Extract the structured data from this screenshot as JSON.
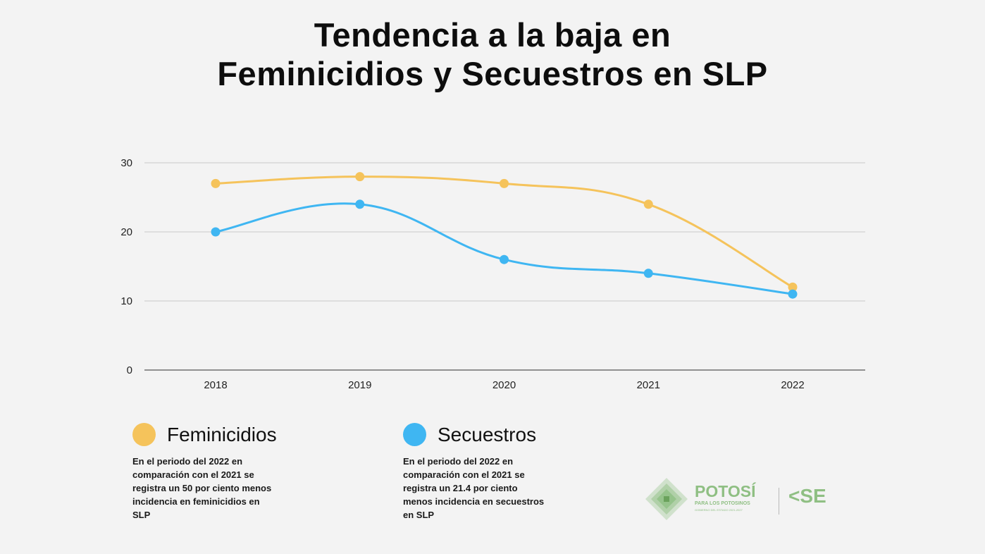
{
  "title": {
    "line1": "Tendencia a la baja en",
    "line2": "Feminicidios y Secuestros en SLP"
  },
  "chart_data": {
    "type": "line",
    "categories": [
      "2018",
      "2019",
      "2020",
      "2021",
      "2022"
    ],
    "ylim": [
      0,
      30
    ],
    "yticks": [
      0,
      10,
      20,
      30
    ],
    "grid": true,
    "smooth": true,
    "series": [
      {
        "name": "Feminicidios",
        "color": "#f5c35b",
        "values": [
          27,
          28,
          27,
          24,
          12
        ]
      },
      {
        "name": "Secuestros",
        "color": "#3fb6f2",
        "values": [
          20,
          24,
          16,
          14,
          11
        ]
      }
    ]
  },
  "legend": [
    {
      "name": "Feminicidios",
      "color": "#f5c35b",
      "description": "En el periodo del 2022 en\ncomparación con el 2021 se\nregistra un 50  por ciento menos\nincidencia en feminicidios en\nSLP"
    },
    {
      "name": "Secuestros",
      "color": "#3fb6f2",
      "description": "En el periodo del 2022 en\ncomparación con el 2021 se\nregistra un 21.4 por ciento\nmenos incidencia en secuestros\nen SLP"
    }
  ],
  "logo": {
    "brand": "POTOSÍ",
    "tagline": "PARA LOS POTOSINOS",
    "subtag": "GOBIERNO DEL ESTADO 2021-2027",
    "agency": "SE",
    "color": "#8fbf83"
  }
}
